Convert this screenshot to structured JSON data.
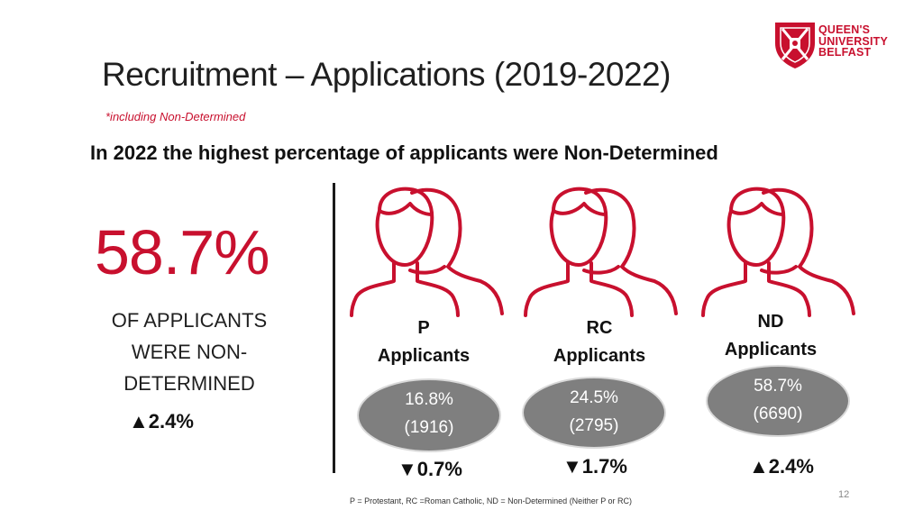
{
  "slide": {
    "title": "Recruitment – Applications (2019-2022)",
    "note": "*including Non-Determined",
    "headline": "In 2022 the highest percentage of applicants were Non-Determined",
    "page_number": "12",
    "footnote": "P = Protestant, RC =Roman Catholic, ND = Non-Determined (Neither P or RC)"
  },
  "logo": {
    "line1": "QUEEN'S",
    "line2": "UNIVERSITY",
    "line3": "BELFAST"
  },
  "highlight": {
    "value": "58.7%",
    "caption_line1": "OF APPLICANTS",
    "caption_line2": "WERE NON-",
    "caption_line3": "DETERMINED",
    "change": "▲2.4%"
  },
  "groups": [
    {
      "code": "P",
      "label": "Applicants",
      "percent": "16.8%",
      "count": "(1916)",
      "change": "▼0.7%"
    },
    {
      "code": "RC",
      "label": "Applicants",
      "percent": "24.5%",
      "count": "(2795)",
      "change": "▼1.7%"
    },
    {
      "code": "ND",
      "label": "Applicants",
      "percent": "58.7%",
      "count": "(6690)",
      "change": "▲2.4%"
    }
  ],
  "colors": {
    "accent": "#c8102e",
    "pill": "#7f7f7f"
  }
}
